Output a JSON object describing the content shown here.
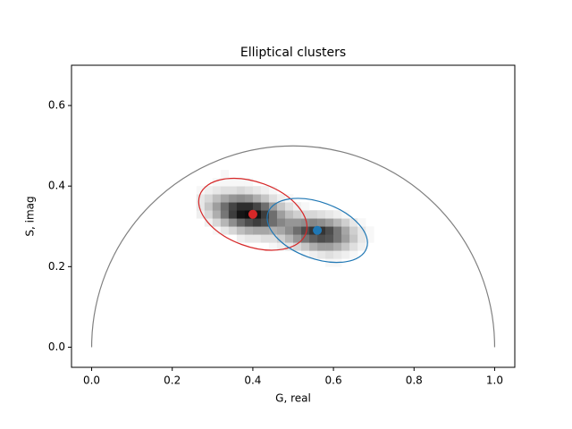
{
  "chart_data": {
    "type": "phasor-histogram",
    "title": "Elliptical clusters",
    "xlabel": "G, real",
    "ylabel": "S, imag",
    "xlim": [
      -0.05,
      1.05
    ],
    "ylim": [
      -0.05,
      0.7
    ],
    "xticks": [
      {
        "value": 0,
        "label": "0.0"
      },
      {
        "value": 0.2,
        "label": "0.2"
      },
      {
        "value": 0.4,
        "label": "0.4"
      },
      {
        "value": 0.6,
        "label": "0.6"
      },
      {
        "value": 0.8,
        "label": "0.8"
      },
      {
        "value": 1,
        "label": "1.0"
      }
    ],
    "yticks": [
      {
        "value": 0,
        "label": "0.0"
      },
      {
        "value": 0.2,
        "label": "0.2"
      },
      {
        "value": 0.4,
        "label": "0.4"
      },
      {
        "value": 0.6,
        "label": "0.6"
      }
    ],
    "universal_circle": {
      "center": [
        0.5,
        0
      ],
      "radius": 0.5,
      "color": "#808080"
    },
    "histogram": {
      "colormap": "Greys",
      "x_bins": [
        0.26,
        0.28,
        0.3,
        0.32,
        0.34,
        0.36,
        0.38,
        0.4,
        0.42,
        0.44,
        0.46,
        0.48,
        0.5,
        0.52,
        0.54,
        0.56,
        0.58,
        0.6,
        0.62,
        0.64,
        0.66,
        0.68,
        0.7
      ],
      "y_bins": [
        0.2,
        0.22,
        0.24,
        0.26,
        0.28,
        0.3,
        0.32,
        0.34,
        0.36,
        0.38,
        0.4,
        0.42,
        0.44
      ],
      "counts": [
        [
          0,
          0,
          0,
          0,
          0,
          0,
          0,
          0,
          0,
          0,
          0,
          0,
          0,
          0,
          0,
          0,
          1,
          1,
          0,
          0,
          0,
          0
        ],
        [
          0,
          0,
          0,
          0,
          0,
          0,
          0,
          0,
          0,
          0,
          0,
          0,
          0,
          1,
          2,
          3,
          4,
          3,
          2,
          1,
          0,
          0
        ],
        [
          0,
          0,
          0,
          0,
          0,
          0,
          0,
          0,
          0,
          1,
          2,
          3,
          5,
          7,
          10,
          12,
          12,
          10,
          7,
          4,
          2,
          0
        ],
        [
          0,
          0,
          0,
          0,
          0,
          2,
          3,
          3,
          4,
          4,
          6,
          9,
          13,
          17,
          20,
          22,
          21,
          17,
          12,
          7,
          3,
          1
        ],
        [
          0,
          0,
          1,
          3,
          5,
          8,
          10,
          11,
          11,
          10,
          11,
          14,
          18,
          22,
          25,
          25,
          22,
          17,
          11,
          6,
          3,
          1
        ],
        [
          0,
          2,
          5,
          9,
          14,
          19,
          22,
          24,
          22,
          18,
          15,
          13,
          13,
          14,
          15,
          14,
          12,
          9,
          6,
          3,
          1,
          0
        ],
        [
          2,
          5,
          10,
          17,
          24,
          29,
          30,
          29,
          24,
          18,
          12,
          8,
          6,
          5,
          5,
          4,
          3,
          2,
          1,
          0,
          0,
          0
        ],
        [
          3,
          7,
          12,
          18,
          23,
          26,
          26,
          23,
          18,
          12,
          7,
          4,
          2,
          1,
          0,
          0,
          0,
          0,
          0,
          0,
          0,
          0
        ],
        [
          3,
          5,
          8,
          11,
          13,
          14,
          13,
          10,
          7,
          4,
          2,
          1,
          0,
          0,
          0,
          0,
          0,
          0,
          0,
          0,
          0,
          0
        ],
        [
          1,
          2,
          3,
          4,
          4,
          5,
          4,
          3,
          2,
          1,
          0,
          0,
          0,
          0,
          0,
          0,
          0,
          0,
          0,
          0,
          0,
          0
        ],
        [
          0,
          0,
          1,
          1,
          1,
          1,
          1,
          0,
          0,
          0,
          0,
          0,
          0,
          0,
          0,
          0,
          0,
          0,
          0,
          0,
          0,
          0
        ],
        [
          0,
          0,
          0,
          1,
          0,
          0,
          0,
          0,
          0,
          0,
          0,
          0,
          0,
          0,
          0,
          0,
          0,
          0,
          0,
          0,
          0,
          0
        ]
      ]
    },
    "clusters": [
      {
        "color": "#d62728",
        "center": [
          0.4,
          0.33
        ],
        "radius": [
          0.14,
          0.08
        ],
        "angle": -20
      },
      {
        "color": "#1f77b4",
        "center": [
          0.56,
          0.29
        ],
        "radius": [
          0.13,
          0.07
        ],
        "angle": -20
      }
    ]
  }
}
